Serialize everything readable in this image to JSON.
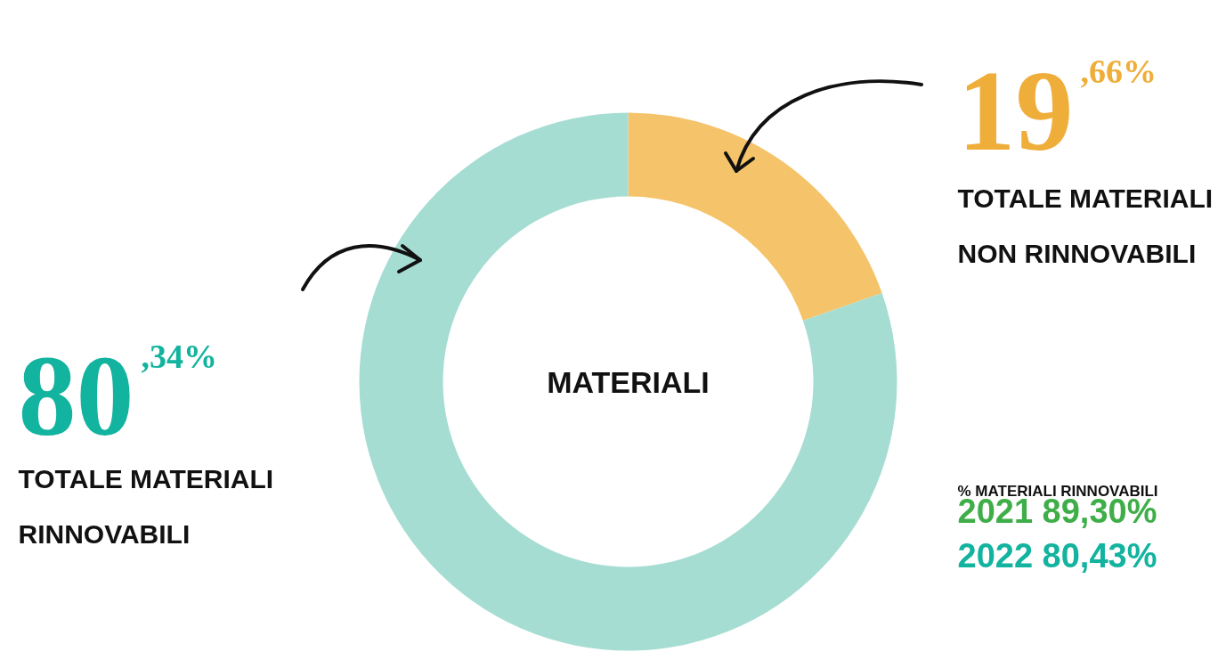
{
  "chart_data": {
    "type": "donut",
    "title": "MATERIALI",
    "categories": [
      "TOTALE MATERIALI NON RINNOVABILI",
      "TOTALE MATERIALI RINNOVABILI"
    ],
    "values": [
      19.66,
      80.34
    ],
    "colors": [
      "#f5c46a",
      "#a6ddd3"
    ],
    "value_labels": [
      "19,66%",
      "80,34%"
    ],
    "annotations": [
      "% MATERIALI RINNOVABILI",
      "2021 89,30%",
      "2022 80,43%"
    ]
  }
}
